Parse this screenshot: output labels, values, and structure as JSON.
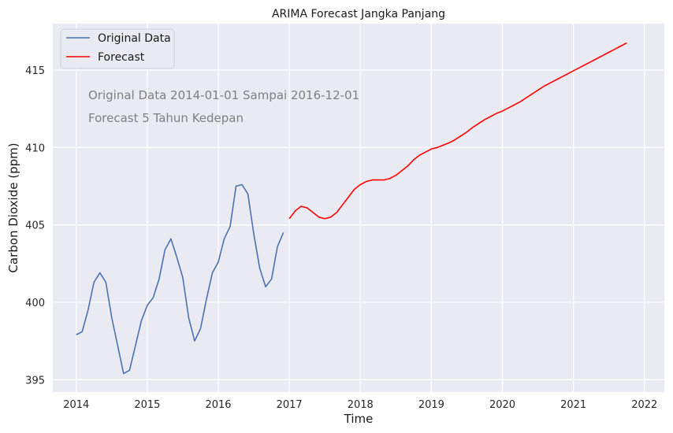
{
  "chart_data": {
    "type": "line",
    "title": "ARIMA Forecast Jangka Panjang",
    "xlabel": "Time",
    "ylabel": "Carbon Dioxide (ppm)",
    "xlim": [
      2013.67,
      2022.28
    ],
    "ylim": [
      394.2,
      418.0
    ],
    "x_ticks": [
      2014,
      2015,
      2016,
      2017,
      2018,
      2019,
      2020,
      2021,
      2022
    ],
    "y_ticks": [
      395,
      400,
      405,
      410,
      415
    ],
    "grid": true,
    "background": "#EAEAF2",
    "legend_position": "top-left",
    "annotations": [
      "Original Data 2014-01-01 Sampai 2016-12-01",
      "Forecast 5 Tahun Kedepan"
    ],
    "series": [
      {
        "name": "Original Data",
        "color": "#4C72B0",
        "x_start": "2014-01",
        "frequency": "monthly",
        "values": [
          397.9,
          398.1,
          399.5,
          401.3,
          401.9,
          401.3,
          399.0,
          397.2,
          395.4,
          395.6,
          397.2,
          398.8,
          399.8,
          400.3,
          401.5,
          403.4,
          404.1,
          402.9,
          401.6,
          399.0,
          397.5,
          398.3,
          400.2,
          401.9,
          402.6,
          404.1,
          404.9,
          407.5,
          407.6,
          407.0,
          404.4,
          402.2,
          401.0,
          401.5,
          403.6,
          404.5
        ]
      },
      {
        "name": "Forecast",
        "color": "#FF0000",
        "x_start": "2017-01",
        "frequency": "monthly",
        "values": [
          405.4,
          405.9,
          406.2,
          406.1,
          405.8,
          405.5,
          405.4,
          405.5,
          405.8,
          406.3,
          406.8,
          407.3,
          407.6,
          407.8,
          407.9,
          407.9,
          407.9,
          408.0,
          408.2,
          408.5,
          408.8,
          409.2,
          409.5,
          409.7,
          409.9,
          410.0,
          410.15,
          410.3,
          410.5,
          410.75,
          411.0,
          411.3,
          411.55,
          411.8,
          412.0,
          412.2,
          412.35,
          412.55,
          412.75,
          412.95,
          413.2,
          413.45,
          413.7,
          413.95,
          414.15,
          414.35,
          414.55,
          414.75,
          414.95,
          415.15,
          415.35,
          415.55,
          415.75,
          415.95,
          416.15,
          416.35,
          416.55,
          416.75
        ]
      }
    ]
  }
}
